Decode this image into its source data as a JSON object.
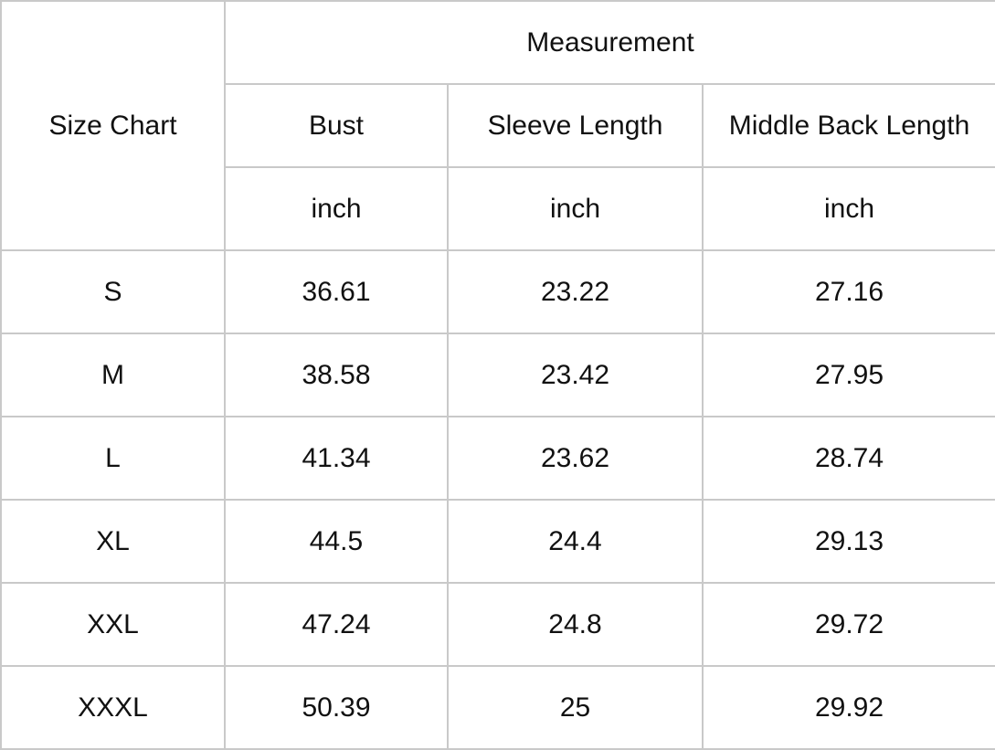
{
  "table": {
    "corner_label": "Size Chart",
    "group_header": "Measurement",
    "columns": [
      {
        "name": "Bust",
        "unit": "inch"
      },
      {
        "name": "Sleeve Length",
        "unit": "inch"
      },
      {
        "name": "Middle Back Length",
        "unit": "inch"
      }
    ],
    "rows": [
      {
        "size": "S",
        "values": [
          "36.61",
          "23.22",
          "27.16"
        ]
      },
      {
        "size": "M",
        "values": [
          "38.58",
          "23.42",
          "27.95"
        ]
      },
      {
        "size": "L",
        "values": [
          "41.34",
          "23.62",
          "28.74"
        ]
      },
      {
        "size": "XL",
        "values": [
          "44.5",
          "24.4",
          "29.13"
        ]
      },
      {
        "size": "XXL",
        "values": [
          "47.24",
          "24.8",
          "29.72"
        ]
      },
      {
        "size": "XXXL",
        "values": [
          "50.39",
          "25",
          "29.92"
        ]
      }
    ]
  }
}
